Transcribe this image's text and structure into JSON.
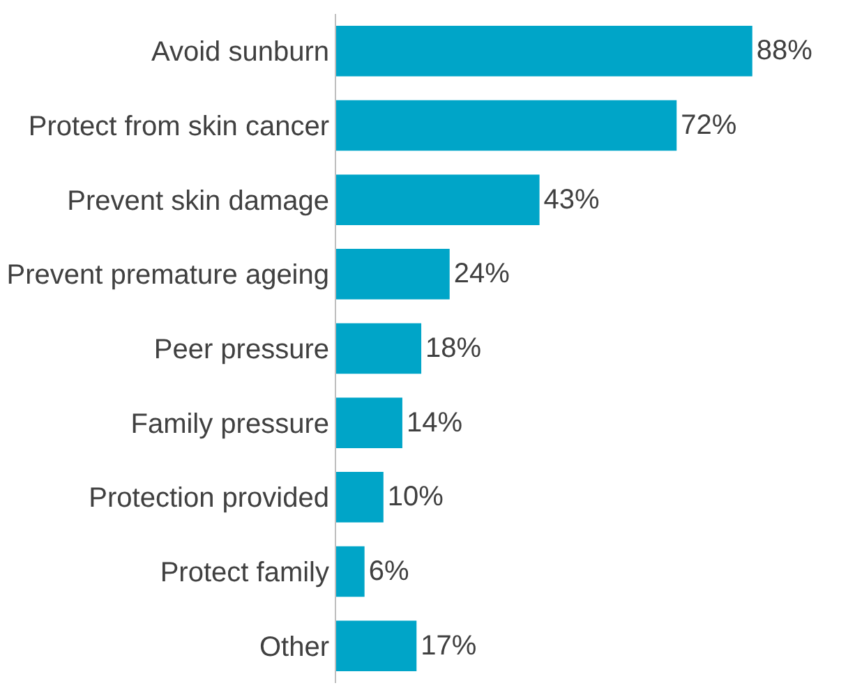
{
  "chart_data": {
    "type": "bar",
    "orientation": "horizontal",
    "categories": [
      "Avoid sunburn",
      "Protect from skin cancer",
      "Prevent skin damage",
      "Prevent premature ageing",
      "Peer pressure",
      "Family pressure",
      "Protection provided",
      "Protect family",
      "Other"
    ],
    "values": [
      88,
      72,
      43,
      24,
      18,
      14,
      10,
      6,
      17
    ],
    "value_labels": [
      "88%",
      "72%",
      "43%",
      "24%",
      "18%",
      "14%",
      "10%",
      "6%",
      "17%"
    ],
    "color": "#00a5c8",
    "tick_labels": "y"
  }
}
